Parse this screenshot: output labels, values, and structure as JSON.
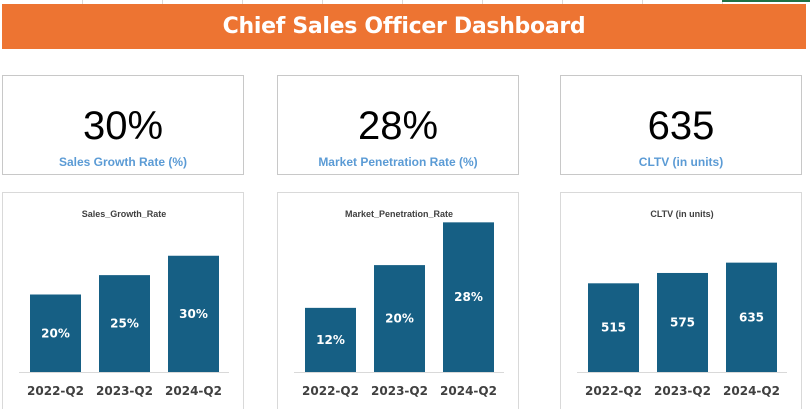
{
  "header": {
    "title": "Chief Sales Officer Dashboard"
  },
  "colors": {
    "banner": "#ed7432",
    "bar": "#165f84",
    "kpi_label": "#5b9bd5"
  },
  "kpis": [
    {
      "value": "30%",
      "label": "Sales Growth Rate (%)"
    },
    {
      "value": "28%",
      "label": "Market Penetration Rate (%)"
    },
    {
      "value": "635",
      "label": "CLTV (in units)"
    }
  ],
  "chart_data": [
    {
      "type": "bar",
      "title": "Sales_Growth_Rate",
      "categories": [
        "2022-Q2",
        "2023-Q2",
        "2024-Q2"
      ],
      "values": [
        20,
        25,
        30
      ],
      "labels": [
        "20%",
        "25%",
        "30%"
      ],
      "ylim": [
        0,
        40
      ]
    },
    {
      "type": "bar",
      "title": "Market_Penetration_Rate",
      "categories": [
        "2022-Q2",
        "2023-Q2",
        "2024-Q2"
      ],
      "values": [
        12,
        20,
        28
      ],
      "labels": [
        "12%",
        "20%",
        "28%"
      ],
      "ylim": [
        0,
        29
      ]
    },
    {
      "type": "bar",
      "title": "CLTV (in units)",
      "categories": [
        "2022-Q2",
        "2023-Q2",
        "2024-Q2"
      ],
      "values": [
        515,
        575,
        635
      ],
      "labels": [
        "515",
        "575",
        "635"
      ],
      "ylim": [
        0,
        900
      ]
    }
  ]
}
